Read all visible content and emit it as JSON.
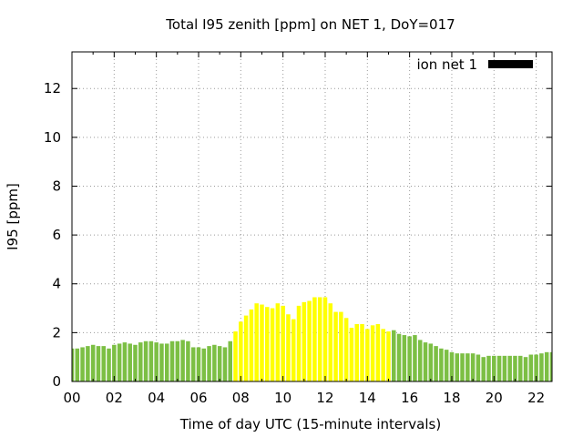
{
  "chart_data": {
    "type": "bar",
    "title": "Total I95 zenith [ppm] on NET 1, DoY=017",
    "xlabel": "Time of day UTC (15-minute intervals)",
    "ylabel": "I95 [ppm]",
    "xlim": [
      0,
      22.75
    ],
    "ylim": [
      0,
      13.5
    ],
    "x_ticks": [
      "00",
      "02",
      "04",
      "06",
      "08",
      "10",
      "12",
      "14",
      "16",
      "18",
      "20",
      "22"
    ],
    "y_ticks": [
      "0",
      "2",
      "4",
      "6",
      "8",
      "10",
      "12"
    ],
    "grid": true,
    "legend": {
      "placement": "top-right",
      "label": "ion net 1",
      "color": "#000000"
    },
    "colors": {
      "normal": "#7cbf44",
      "elevated": "#ffff00"
    },
    "bar_interval_hours": 0.25,
    "series": [
      {
        "x_start": 0,
        "values": [
          1.35,
          1.35,
          1.4,
          1.45,
          1.5,
          1.45,
          1.45,
          1.35,
          1.5,
          1.55,
          1.6,
          1.55,
          1.5,
          1.6,
          1.65,
          1.65,
          1.6,
          1.55,
          1.55,
          1.65,
          1.65,
          1.7,
          1.65,
          1.4,
          1.4,
          1.35,
          1.45,
          1.5,
          1.45,
          1.4,
          1.65,
          2.05,
          2.45,
          2.7,
          2.95,
          3.2,
          3.15,
          3.05,
          3.0,
          3.2,
          3.1,
          2.75,
          2.55,
          3.1,
          3.25,
          3.3,
          3.45,
          3.45,
          3.45,
          3.2,
          2.85,
          2.85,
          2.6,
          2.2,
          2.35,
          2.35,
          2.15,
          2.3,
          2.35,
          2.15,
          2.05,
          2.1,
          1.95,
          1.9,
          1.85,
          1.9,
          1.7,
          1.6,
          1.55,
          1.45,
          1.35,
          1.3,
          1.2,
          1.15,
          1.15,
          1.15,
          1.15,
          1.1,
          1.0,
          1.05,
          1.05,
          1.05,
          1.05,
          1.05,
          1.05,
          1.05,
          1.0,
          1.1,
          1.1,
          1.15,
          1.2,
          1.2
        ],
        "color_class": [
          "normal",
          "normal",
          "normal",
          "normal",
          "normal",
          "normal",
          "normal",
          "normal",
          "normal",
          "normal",
          "normal",
          "normal",
          "normal",
          "normal",
          "normal",
          "normal",
          "normal",
          "normal",
          "normal",
          "normal",
          "normal",
          "normal",
          "normal",
          "normal",
          "normal",
          "normal",
          "normal",
          "normal",
          "normal",
          "normal",
          "normal",
          "elevated",
          "elevated",
          "elevated",
          "elevated",
          "elevated",
          "elevated",
          "elevated",
          "elevated",
          "elevated",
          "elevated",
          "elevated",
          "elevated",
          "elevated",
          "elevated",
          "elevated",
          "elevated",
          "elevated",
          "elevated",
          "elevated",
          "elevated",
          "elevated",
          "elevated",
          "elevated",
          "elevated",
          "elevated",
          "elevated",
          "elevated",
          "elevated",
          "elevated",
          "elevated",
          "normal",
          "normal",
          "normal",
          "normal",
          "normal",
          "normal",
          "normal",
          "normal",
          "normal",
          "normal",
          "normal",
          "normal",
          "normal",
          "normal",
          "normal",
          "normal",
          "normal",
          "normal",
          "normal",
          "normal",
          "normal",
          "normal",
          "normal",
          "normal",
          "normal",
          "normal",
          "normal",
          "normal",
          "normal",
          "normal",
          "normal"
        ]
      }
    ]
  }
}
